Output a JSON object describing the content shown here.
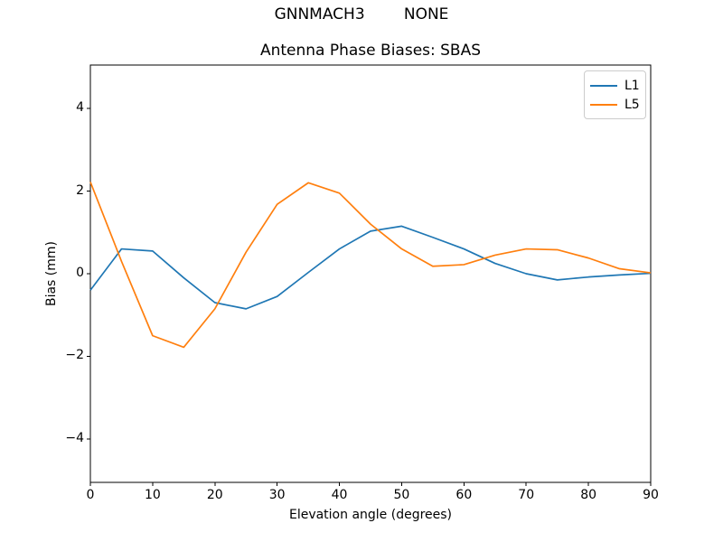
{
  "chart_data": {
    "type": "line",
    "suptitle": "GNNMACH3        NONE",
    "title": "Antenna Phase Biases: SBAS",
    "xlabel": "Elevation angle (degrees)",
    "ylabel": "Bias (mm)",
    "xlim": [
      0,
      90
    ],
    "ylim": [
      -5.05,
      5.05
    ],
    "xticks": [
      0,
      10,
      20,
      30,
      40,
      50,
      60,
      70,
      80,
      90
    ],
    "yticks": [
      -4,
      -2,
      0,
      2,
      4
    ],
    "grid": false,
    "legend_position": "upper right",
    "x": [
      0,
      5,
      10,
      15,
      20,
      25,
      30,
      35,
      40,
      45,
      50,
      55,
      60,
      65,
      70,
      75,
      80,
      85,
      90
    ],
    "series": [
      {
        "name": "L1",
        "color": "#1f77b4",
        "values": [
          -0.4,
          0.6,
          0.55,
          -0.1,
          -0.7,
          -0.85,
          -0.55,
          0.03,
          0.6,
          1.03,
          1.15,
          0.88,
          0.6,
          0.25,
          0.0,
          -0.15,
          -0.08,
          -0.03,
          0.01
        ]
      },
      {
        "name": "L5",
        "color": "#ff7f0e",
        "values": [
          2.22,
          0.3,
          -1.5,
          -1.78,
          -0.85,
          0.52,
          1.68,
          2.2,
          1.95,
          1.2,
          0.6,
          0.18,
          0.22,
          0.45,
          0.6,
          0.58,
          0.38,
          0.12,
          0.02
        ]
      }
    ]
  }
}
